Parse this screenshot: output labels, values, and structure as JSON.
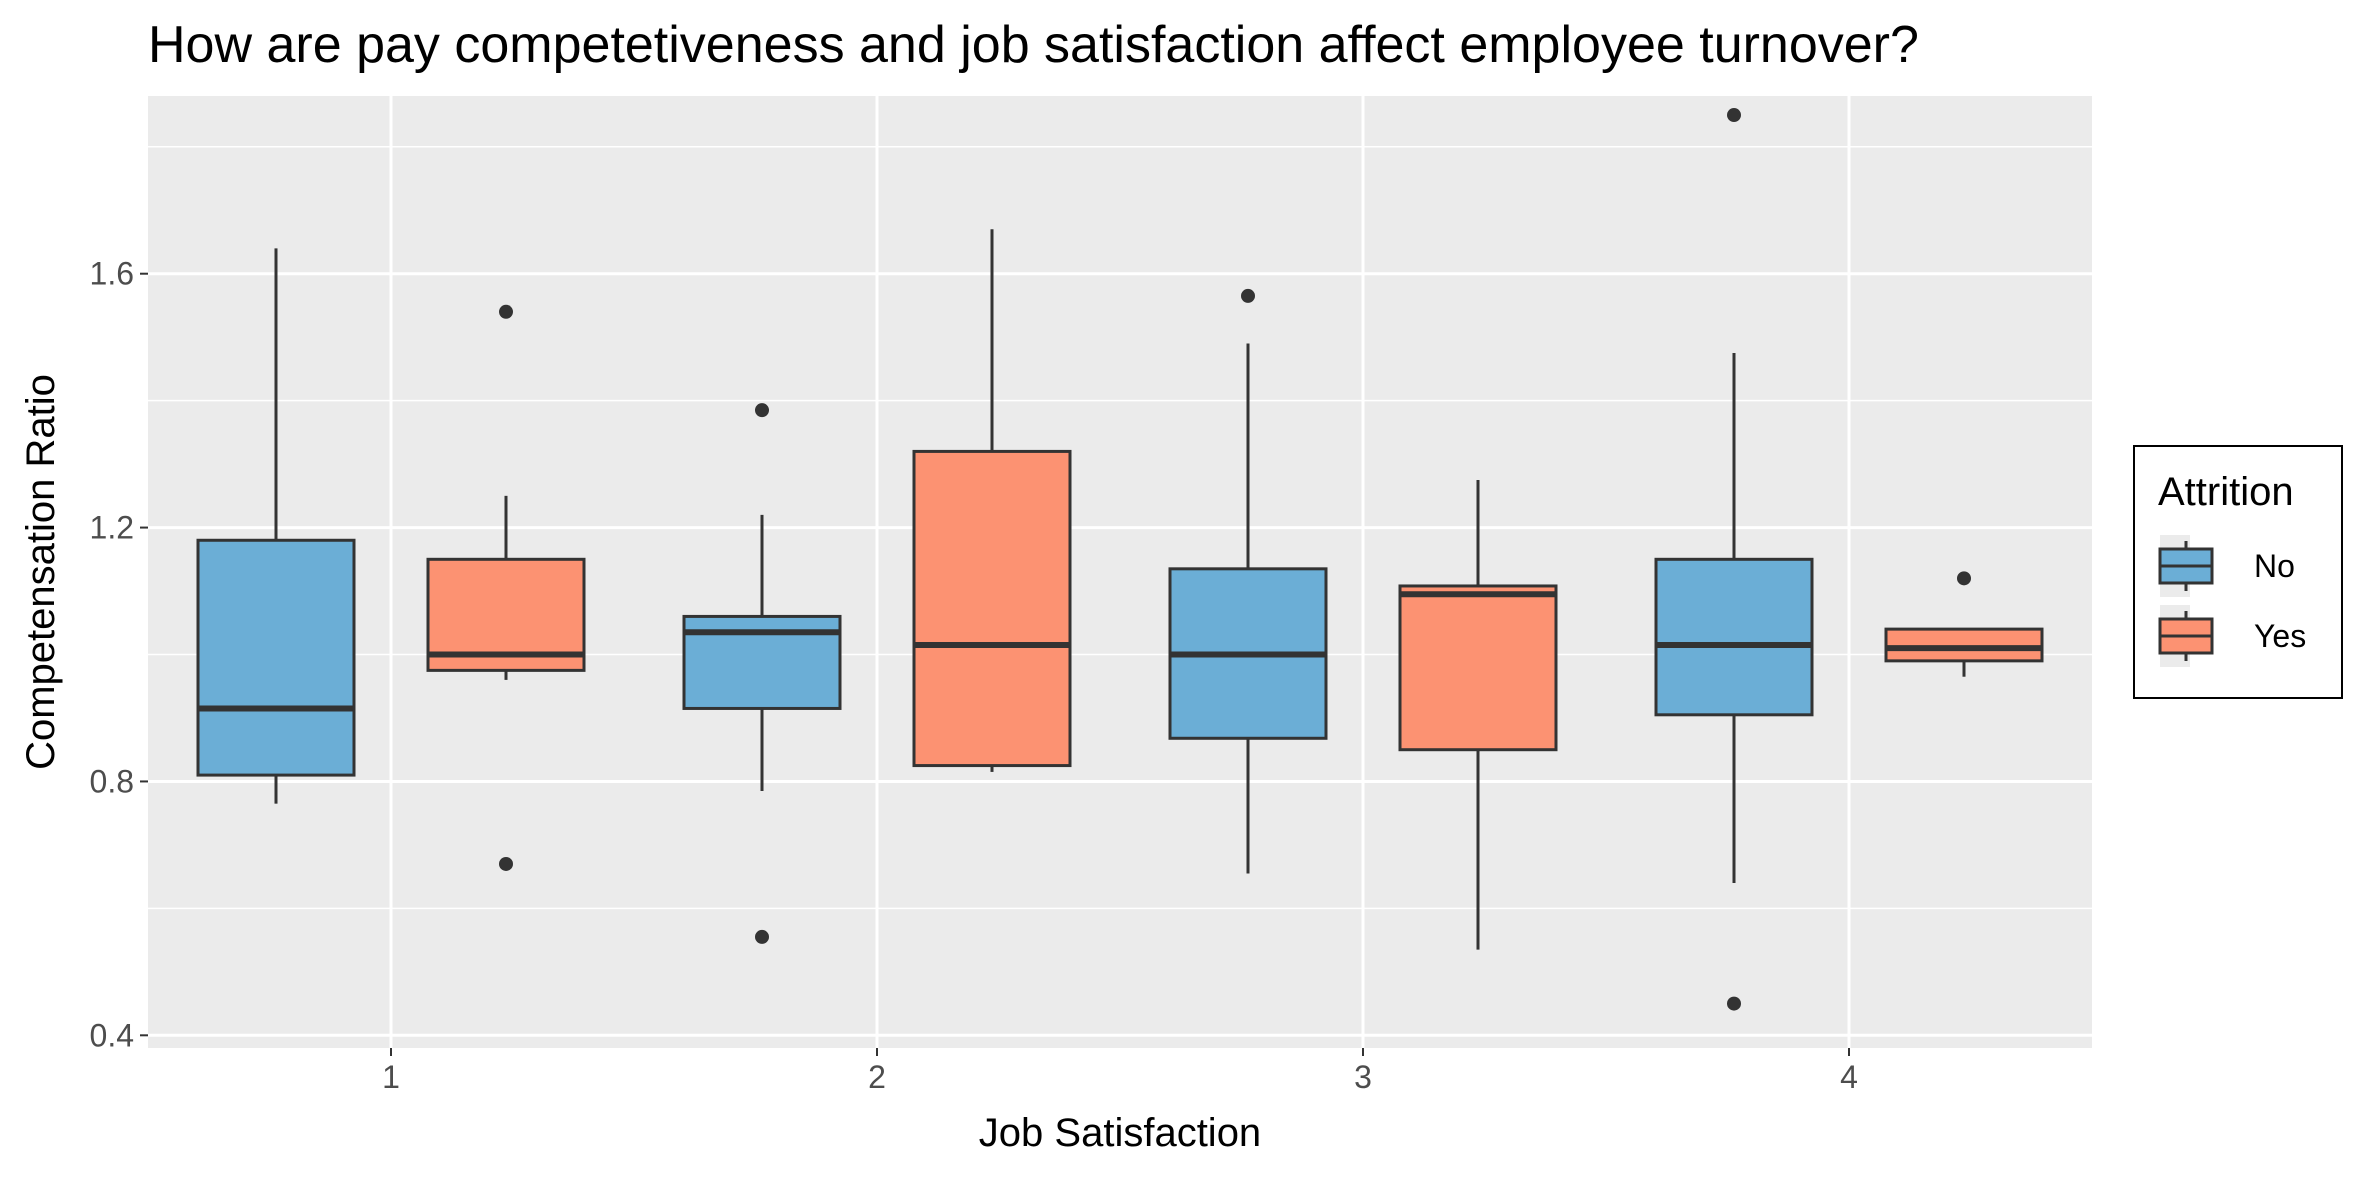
{
  "chart_data": {
    "type": "boxplot",
    "title": "How are pay competetiveness and job satisfaction affect employee turnover?",
    "xlabel": "Job Satisfaction",
    "ylabel": "Competensation Ratio",
    "categories": [
      "1",
      "2",
      "3",
      "4"
    ],
    "ylim": [
      0.38,
      1.88
    ],
    "yticks": [
      0.4,
      0.8,
      1.2,
      1.6
    ],
    "ytick_labels": [
      "0.4",
      "0.8",
      "1.2",
      "1.6"
    ],
    "grid": true,
    "legend": {
      "title": "Attrition",
      "position": "right",
      "entries": [
        "No",
        "Yes"
      ]
    },
    "series": [
      {
        "name": "No",
        "color": "#6baed6",
        "boxes": [
          {
            "category": "1",
            "whisker_low": 0.765,
            "q1": 0.81,
            "median": 0.915,
            "q3": 1.18,
            "whisker_high": 1.64,
            "outliers": []
          },
          {
            "category": "2",
            "whisker_low": 0.785,
            "q1": 0.915,
            "median": 1.035,
            "q3": 1.06,
            "whisker_high": 1.22,
            "outliers": [
              1.385,
              0.555
            ]
          },
          {
            "category": "3",
            "whisker_low": 0.655,
            "q1": 0.868,
            "median": 1.0,
            "q3": 1.135,
            "whisker_high": 1.49,
            "outliers": [
              1.565
            ]
          },
          {
            "category": "4",
            "whisker_low": 0.64,
            "q1": 0.905,
            "median": 1.015,
            "q3": 1.15,
            "whisker_high": 1.475,
            "outliers": [
              1.85,
              0.45
            ]
          }
        ]
      },
      {
        "name": "Yes",
        "color": "#fc9272",
        "boxes": [
          {
            "category": "1",
            "whisker_low": 0.96,
            "q1": 0.975,
            "median": 1.0,
            "q3": 1.15,
            "whisker_high": 1.25,
            "outliers": [
              1.54,
              0.67
            ]
          },
          {
            "category": "2",
            "whisker_low": 0.815,
            "q1": 0.825,
            "median": 1.015,
            "q3": 1.32,
            "whisker_high": 1.67,
            "outliers": []
          },
          {
            "category": "3",
            "whisker_low": 0.535,
            "q1": 0.85,
            "median": 1.095,
            "q3": 1.108,
            "whisker_high": 1.275,
            "outliers": []
          },
          {
            "category": "4",
            "whisker_low": 0.965,
            "q1": 0.99,
            "median": 1.01,
            "q3": 1.04,
            "whisker_high": 1.04,
            "outliers": [
              1.12
            ]
          }
        ]
      }
    ]
  }
}
